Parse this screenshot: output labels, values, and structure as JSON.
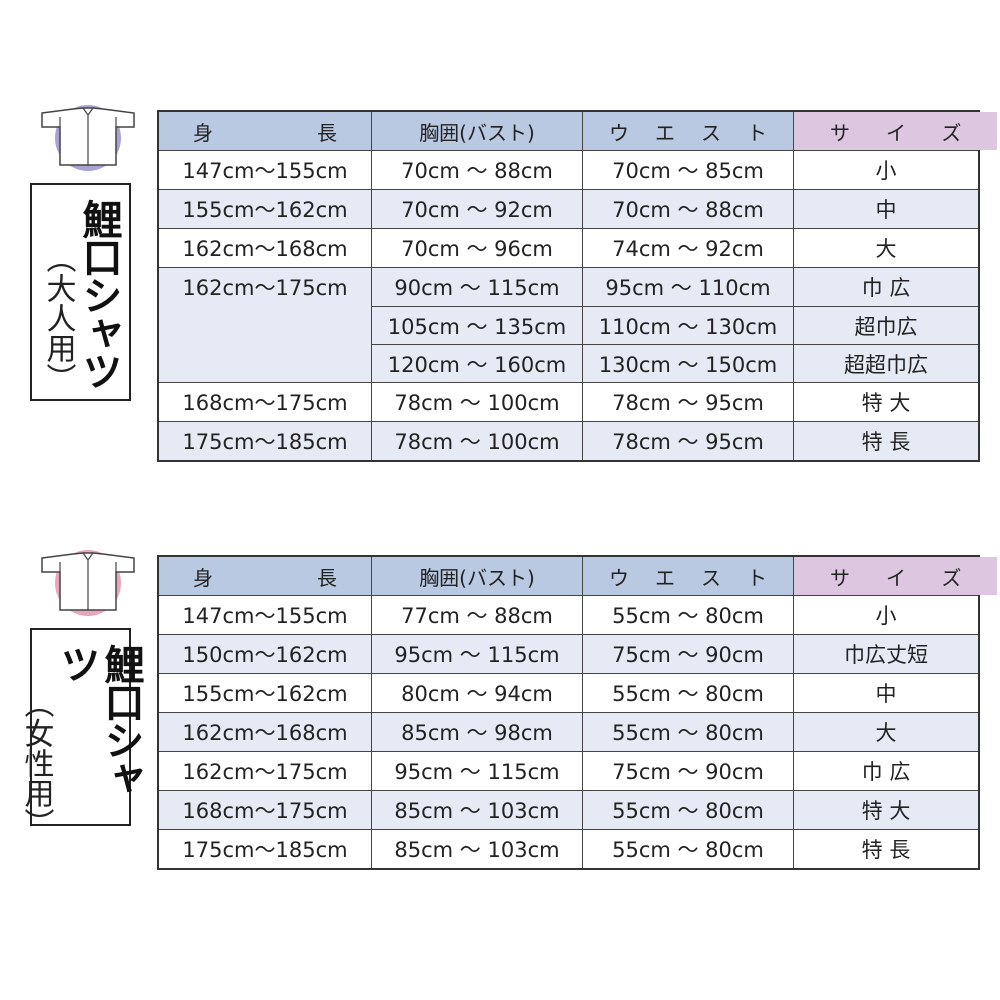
{
  "colors": {
    "header": "#b9c9e2",
    "size_header": "#dcc6e0",
    "alt_row": "#e5eaf4",
    "adult_icon": "#a9a3d3",
    "women_icon": "#e8a6bd"
  },
  "headers": [
    "身長",
    "胸囲(バスト)",
    "ウエスト",
    "サイズ"
  ],
  "header_spread": [
    [
      "身",
      "長"
    ],
    [
      "胸囲(バスト)"
    ],
    [
      "ウ",
      "エ",
      "ス",
      "ト"
    ],
    [
      "サ",
      "イ",
      "ズ"
    ]
  ],
  "adult": {
    "icon": "shirt-icon",
    "title": "鯉口シャツ",
    "subtitle": "（大人用）",
    "rows": [
      {
        "height": "147cm～155cm",
        "bust": "70cm ～ 88cm",
        "waist": "70cm ～ 85cm",
        "size": "小"
      },
      {
        "height": "155cm～162cm",
        "bust": "70cm ～ 92cm",
        "waist": "70cm ～ 88cm",
        "size": "中"
      },
      {
        "height": "162cm～168cm",
        "bust": "70cm ～ 96cm",
        "waist": "74cm ～ 92cm",
        "size": "大"
      },
      {
        "height": "162cm～175cm",
        "bust": "90cm ～ 115cm",
        "waist": "95cm ～ 110cm",
        "size": "巾 広"
      },
      {
        "height": "",
        "bust": "105cm ～ 135cm",
        "waist": "110cm ～ 130cm",
        "size": "超巾広"
      },
      {
        "height": "",
        "bust": "120cm ～ 160cm",
        "waist": "130cm ～ 150cm",
        "size": "超超巾広"
      },
      {
        "height": "168cm～175cm",
        "bust": "78cm ～ 100cm",
        "waist": "78cm ～ 95cm",
        "size": "特 大"
      },
      {
        "height": "175cm～185cm",
        "bust": "78cm ～ 100cm",
        "waist": "78cm ～ 95cm",
        "size": "特 長"
      }
    ]
  },
  "women": {
    "icon": "shirt-icon",
    "title": "鯉口シャツ",
    "subtitle": "（女性用）",
    "rows": [
      {
        "height": "147cm～155cm",
        "bust": "77cm ～ 88cm",
        "waist": "55cm ～ 80cm",
        "size": "小"
      },
      {
        "height": "150cm～162cm",
        "bust": "95cm ～ 115cm",
        "waist": "75cm ～ 90cm",
        "size": "巾広丈短"
      },
      {
        "height": "155cm～162cm",
        "bust": "80cm ～ 94cm",
        "waist": "55cm ～ 80cm",
        "size": "中"
      },
      {
        "height": "162cm～168cm",
        "bust": "85cm ～ 98cm",
        "waist": "55cm ～ 80cm",
        "size": "大"
      },
      {
        "height": "162cm～175cm",
        "bust": "95cm ～ 115cm",
        "waist": "75cm ～ 90cm",
        "size": "巾 広"
      },
      {
        "height": "168cm～175cm",
        "bust": "85cm ～ 103cm",
        "waist": "55cm ～ 80cm",
        "size": "特 大"
      },
      {
        "height": "175cm～185cm",
        "bust": "85cm ～ 103cm",
        "waist": "55cm ～ 80cm",
        "size": "特 長"
      }
    ]
  }
}
